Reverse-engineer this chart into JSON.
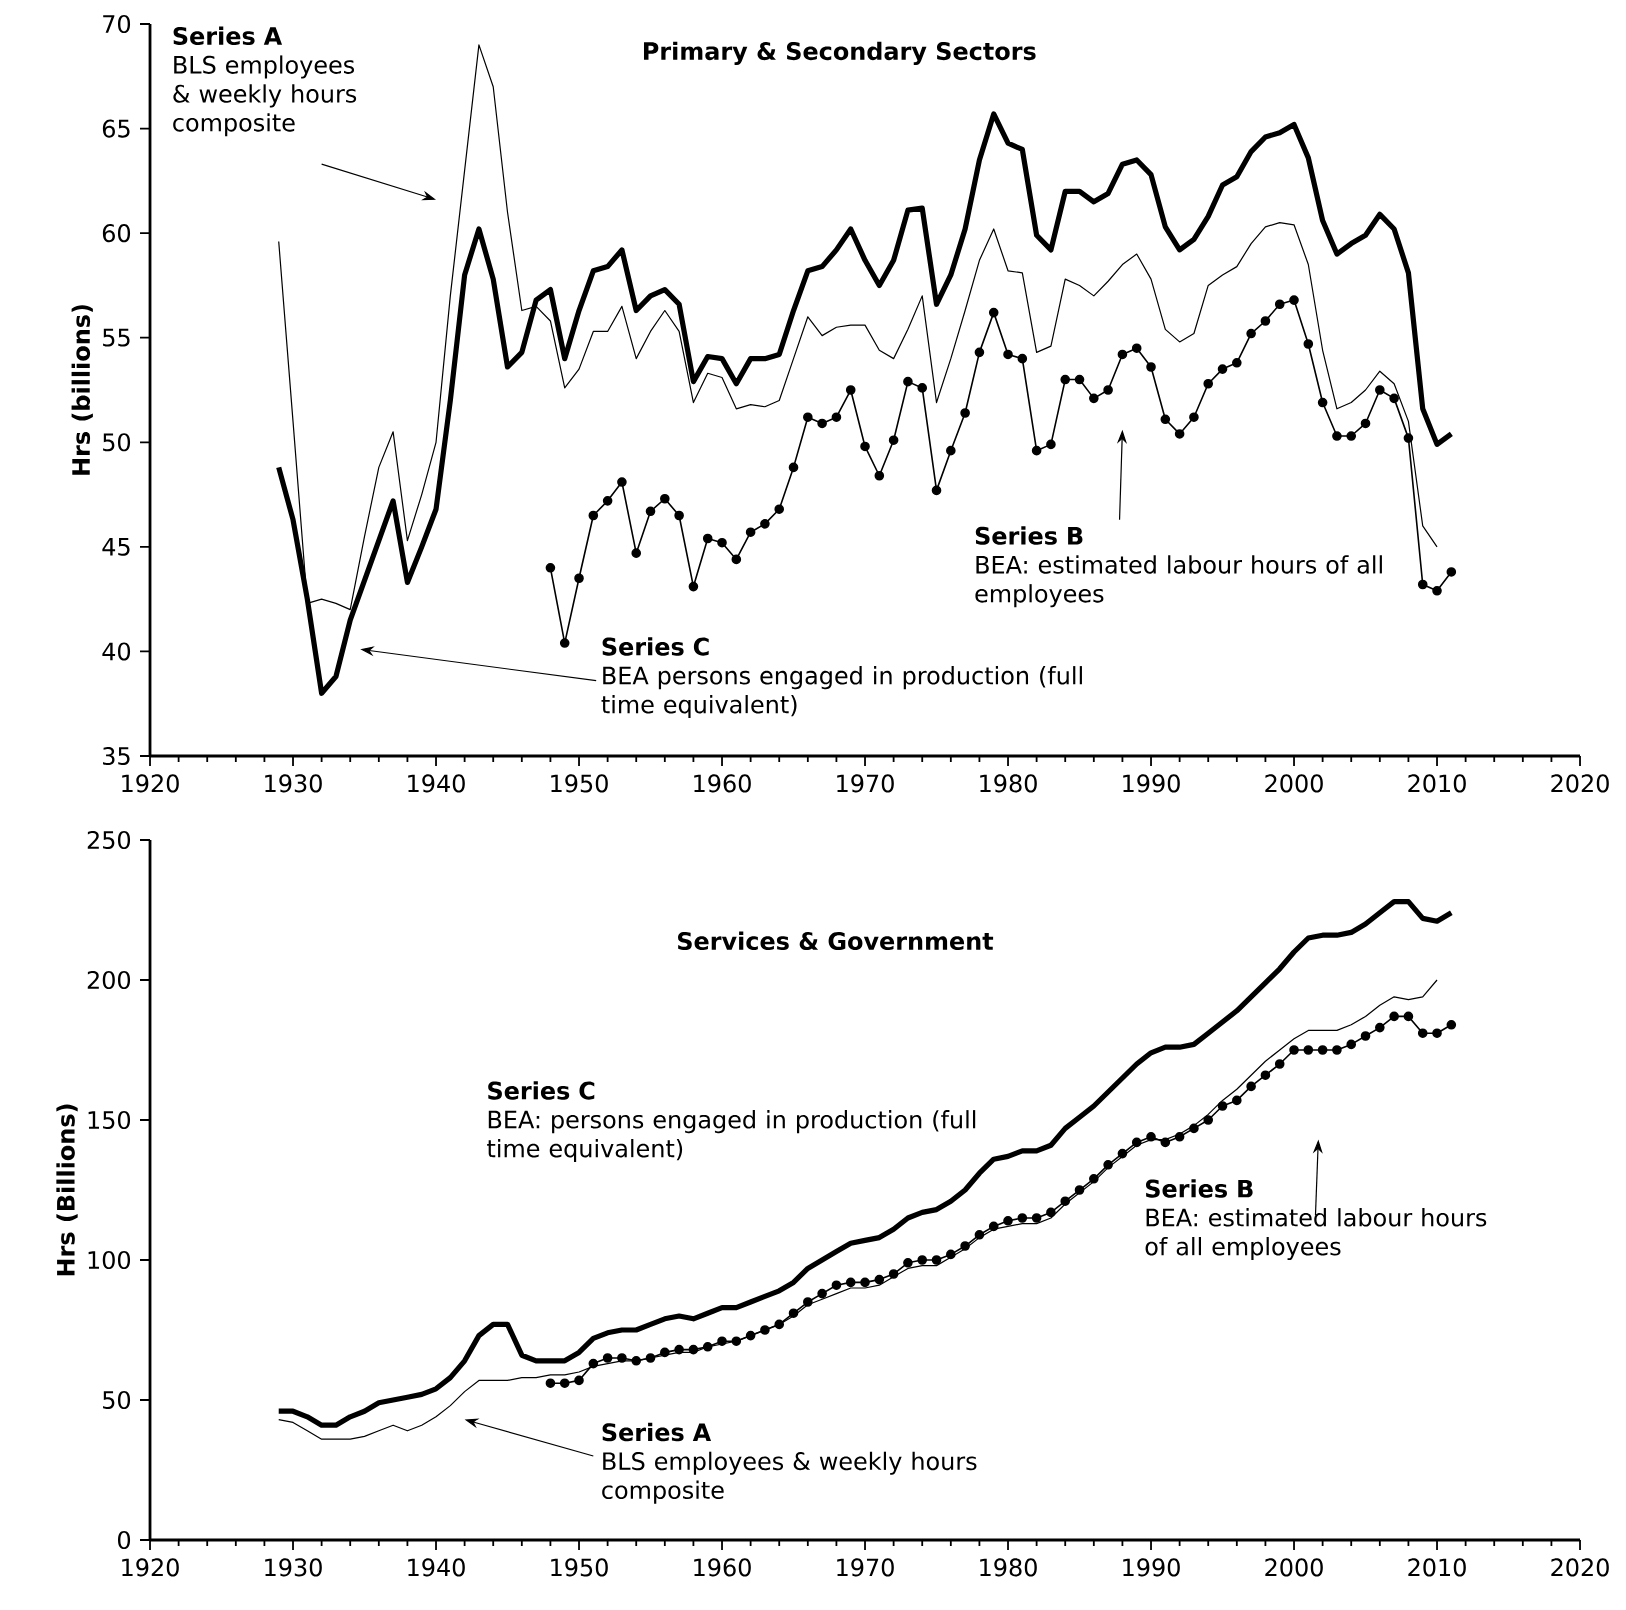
{
  "chart_data": [
    {
      "type": "line",
      "title": "Primary & Secondary Sectors",
      "ylabel": "Hrs (billions)",
      "xlim": [
        1920,
        2020
      ],
      "xticks": [
        1920,
        1930,
        1940,
        1950,
        1960,
        1970,
        1980,
        1990,
        2000,
        2010,
        2020
      ],
      "ylim": [
        35,
        70
      ],
      "yticks": [
        35,
        40,
        45,
        50,
        55,
        60,
        65,
        70
      ],
      "line_style": "solid",
      "series": [
        {
          "color": "#000000",
          "marker": "none",
          "x": [
            1929,
            1930,
            1931,
            1932,
            1933,
            1934,
            1935,
            1936,
            1937,
            1938,
            1939,
            1940,
            1941,
            1942,
            1943,
            1944,
            1945,
            1946,
            1947,
            1948,
            1949,
            1950,
            1951,
            1952,
            1953,
            1954,
            1955,
            1956,
            1957,
            1958,
            1959,
            1960,
            1961,
            1962,
            1963,
            1964,
            1965,
            1966,
            1967,
            1968,
            1969,
            1970,
            1971,
            1972,
            1973,
            1974,
            1975,
            1976,
            1977,
            1978,
            1979,
            1980,
            1981,
            1982,
            1983,
            1984,
            1985,
            1986,
            1987,
            1988,
            1989,
            1990,
            1991,
            1992,
            1993,
            1994,
            1995,
            1996,
            1997,
            1998,
            1999,
            2000,
            2001,
            2002,
            2003,
            2004,
            2005,
            2006,
            2007,
            2008,
            2009,
            2010
          ],
          "values": [
            59.6,
            51.0,
            42.3,
            42.5,
            42.3,
            42.0,
            45.5,
            48.8,
            50.5,
            45.3,
            47.5,
            50.0,
            57.0,
            63.0,
            69.0,
            67.0,
            61.0,
            56.3,
            56.5,
            55.8,
            52.6,
            53.5,
            55.3,
            55.3,
            56.5,
            54.0,
            55.3,
            56.3,
            55.3,
            51.9,
            53.3,
            53.1,
            51.6,
            51.8,
            51.7,
            52.0,
            54.0,
            56.0,
            55.1,
            55.5,
            55.6,
            55.6,
            54.4,
            54.0,
            55.4,
            57.0,
            51.9,
            54.0,
            56.3,
            58.7,
            60.2,
            58.2,
            58.1,
            54.3,
            54.6,
            57.8,
            57.5,
            57.0,
            57.7,
            58.5,
            59.0,
            57.8,
            55.4,
            54.8,
            55.2,
            57.5,
            58.0,
            58.4,
            59.5,
            60.3,
            60.5,
            60.4,
            58.5,
            54.4,
            51.6,
            51.9,
            52.5,
            53.4,
            52.8,
            51.0,
            46.0,
            45.0
          ]
        },
        {
          "color": "#000000",
          "marker": "circle",
          "x": [
            1948,
            1949,
            1950,
            1951,
            1952,
            1953,
            1954,
            1955,
            1956,
            1957,
            1958,
            1959,
            1960,
            1961,
            1962,
            1963,
            1964,
            1965,
            1966,
            1967,
            1968,
            1969,
            1970,
            1971,
            1972,
            1973,
            1974,
            1975,
            1976,
            1977,
            1978,
            1979,
            1980,
            1981,
            1982,
            1983,
            1984,
            1985,
            1986,
            1987,
            1988,
            1989,
            1990,
            1991,
            1992,
            1993,
            1994,
            1995,
            1996,
            1997,
            1998,
            1999,
            2000,
            2001,
            2002,
            2003,
            2004,
            2005,
            2006,
            2007,
            2008,
            2009,
            2010,
            2011
          ],
          "values": [
            44.0,
            40.4,
            43.5,
            46.5,
            47.2,
            48.1,
            44.7,
            46.7,
            47.3,
            46.5,
            43.1,
            45.4,
            45.2,
            44.4,
            45.7,
            46.1,
            46.8,
            48.8,
            51.2,
            50.9,
            51.2,
            52.5,
            49.8,
            48.4,
            50.1,
            52.9,
            52.6,
            47.7,
            49.6,
            51.4,
            54.3,
            56.2,
            54.2,
            54.0,
            49.6,
            49.9,
            53.0,
            53.0,
            52.1,
            52.5,
            54.2,
            54.5,
            53.6,
            51.1,
            50.4,
            51.2,
            52.8,
            53.5,
            53.8,
            55.2,
            55.8,
            56.6,
            56.8,
            54.7,
            51.9,
            50.3,
            50.3,
            50.9,
            52.5,
            52.1,
            50.2,
            43.2,
            42.9,
            43.8
          ]
        },
        {
          "color": "#000000",
          "marker": "none",
          "x": [
            1929,
            1930,
            1931,
            1932,
            1933,
            1934,
            1935,
            1936,
            1937,
            1938,
            1939,
            1940,
            1941,
            1942,
            1943,
            1944,
            1945,
            1946,
            1947,
            1948,
            1949,
            1950,
            1951,
            1952,
            1953,
            1954,
            1955,
            1956,
            1957,
            1958,
            1959,
            1960,
            1961,
            1962,
            1963,
            1964,
            1965,
            1966,
            1967,
            1968,
            1969,
            1970,
            1971,
            1972,
            1973,
            1974,
            1975,
            1976,
            1977,
            1978,
            1979,
            1980,
            1981,
            1982,
            1983,
            1984,
            1985,
            1986,
            1987,
            1988,
            1989,
            1990,
            1991,
            1992,
            1993,
            1994,
            1995,
            1996,
            1997,
            1998,
            1999,
            2000,
            2001,
            2002,
            2003,
            2004,
            2005,
            2006,
            2007,
            2008,
            2009,
            2010,
            2011
          ],
          "values": [
            48.8,
            46.3,
            42.5,
            38.0,
            38.8,
            41.5,
            43.4,
            45.3,
            47.2,
            43.3,
            45.0,
            46.8,
            52.0,
            58.0,
            60.2,
            57.8,
            53.6,
            54.3,
            56.8,
            57.3,
            54.0,
            56.3,
            58.2,
            58.4,
            59.2,
            56.3,
            57.0,
            57.3,
            56.6,
            52.9,
            54.1,
            54.0,
            52.8,
            54.0,
            54.0,
            54.2,
            56.3,
            58.2,
            58.4,
            59.2,
            60.2,
            58.7,
            57.5,
            58.7,
            61.1,
            61.2,
            56.6,
            58.0,
            60.2,
            63.5,
            65.7,
            64.3,
            64.0,
            59.9,
            59.2,
            62.0,
            62.0,
            61.5,
            61.9,
            63.3,
            63.5,
            62.8,
            60.3,
            59.2,
            59.7,
            60.8,
            62.3,
            62.7,
            63.9,
            64.6,
            64.8,
            65.2,
            63.6,
            60.6,
            59.0,
            59.5,
            59.9,
            60.9,
            60.2,
            58.1,
            51.6,
            49.9,
            50.4
          ]
        }
      ],
      "annotations": [
        "Series A",
        "BLS employees & weekly hours composite",
        "Series B",
        "BEA: estimated labour hours of all employees",
        "Series C",
        "BEA persons engaged in production (full time equivalent)"
      ]
    },
    {
      "type": "line",
      "title": "Services & Government",
      "ylabel": "Hrs (Billions)",
      "xlim": [
        1920,
        2020
      ],
      "xticks": [
        1920,
        1930,
        1940,
        1950,
        1960,
        1970,
        1980,
        1990,
        2000,
        2010,
        2020
      ],
      "ylim": [
        0,
        250
      ],
      "yticks": [
        0,
        50,
        100,
        150,
        200,
        250
      ],
      "line_style": "solid",
      "series": [
        {
          "color": "#000000",
          "marker": "none",
          "x": [
            1929,
            1930,
            1931,
            1932,
            1933,
            1934,
            1935,
            1936,
            1937,
            1938,
            1939,
            1940,
            1941,
            1942,
            1943,
            1944,
            1945,
            1946,
            1947,
            1948,
            1949,
            1950,
            1951,
            1952,
            1953,
            1954,
            1955,
            1956,
            1957,
            1958,
            1959,
            1960,
            1961,
            1962,
            1963,
            1964,
            1965,
            1966,
            1967,
            1968,
            1969,
            1970,
            1971,
            1972,
            1973,
            1974,
            1975,
            1976,
            1977,
            1978,
            1979,
            1980,
            1981,
            1982,
            1983,
            1984,
            1985,
            1986,
            1987,
            1988,
            1989,
            1990,
            1991,
            1992,
            1993,
            1994,
            1995,
            1996,
            1997,
            1998,
            1999,
            2000,
            2001,
            2002,
            2003,
            2004,
            2005,
            2006,
            2007,
            2008,
            2009,
            2010
          ],
          "values": [
            43,
            42,
            39,
            36,
            36,
            36,
            37,
            39,
            41,
            39,
            41,
            44,
            48,
            53,
            57,
            57,
            57,
            58,
            58,
            59,
            59,
            60,
            62,
            63,
            64,
            64,
            65,
            66,
            67,
            67,
            69,
            70,
            71,
            73,
            75,
            77,
            80,
            84,
            86,
            88,
            90,
            90,
            91,
            94,
            97,
            98,
            98,
            101,
            104,
            108,
            111,
            112,
            113,
            113,
            115,
            120,
            124,
            128,
            133,
            137,
            141,
            143,
            143,
            145,
            148,
            152,
            157,
            161,
            166,
            171,
            175,
            179,
            182,
            182,
            182,
            184,
            187,
            191,
            194,
            193,
            194,
            200
          ]
        },
        {
          "color": "#000000",
          "marker": "circle",
          "x": [
            1948,
            1949,
            1950,
            1951,
            1952,
            1953,
            1954,
            1955,
            1956,
            1957,
            1958,
            1959,
            1960,
            1961,
            1962,
            1963,
            1964,
            1965,
            1966,
            1967,
            1968,
            1969,
            1970,
            1971,
            1972,
            1973,
            1974,
            1975,
            1976,
            1977,
            1978,
            1979,
            1980,
            1981,
            1982,
            1983,
            1984,
            1985,
            1986,
            1987,
            1988,
            1989,
            1990,
            1991,
            1992,
            1993,
            1994,
            1995,
            1996,
            1997,
            1998,
            1999,
            2000,
            2001,
            2002,
            2003,
            2004,
            2005,
            2006,
            2007,
            2008,
            2009,
            2010,
            2011
          ],
          "values": [
            56,
            56,
            57,
            63,
            65,
            65,
            64,
            65,
            67,
            68,
            68,
            69,
            71,
            71,
            73,
            75,
            77,
            81,
            85,
            88,
            91,
            92,
            92,
            93,
            95,
            99,
            100,
            100,
            102,
            105,
            109,
            112,
            114,
            115,
            115,
            117,
            121,
            125,
            129,
            134,
            138,
            142,
            144,
            142,
            144,
            147,
            150,
            155,
            157,
            162,
            166,
            170,
            175,
            175,
            175,
            175,
            177,
            180,
            183,
            187,
            187,
            181,
            181,
            184
          ]
        },
        {
          "color": "#000000",
          "marker": "none",
          "x": [
            1929,
            1930,
            1931,
            1932,
            1933,
            1934,
            1935,
            1936,
            1937,
            1938,
            1939,
            1940,
            1941,
            1942,
            1943,
            1944,
            1945,
            1946,
            1947,
            1948,
            1949,
            1950,
            1951,
            1952,
            1953,
            1954,
            1955,
            1956,
            1957,
            1958,
            1959,
            1960,
            1961,
            1962,
            1963,
            1964,
            1965,
            1966,
            1967,
            1968,
            1969,
            1970,
            1971,
            1972,
            1973,
            1974,
            1975,
            1976,
            1977,
            1978,
            1979,
            1980,
            1981,
            1982,
            1983,
            1984,
            1985,
            1986,
            1987,
            1988,
            1989,
            1990,
            1991,
            1992,
            1993,
            1994,
            1995,
            1996,
            1997,
            1998,
            1999,
            2000,
            2001,
            2002,
            2003,
            2004,
            2005,
            2006,
            2007,
            2008,
            2009,
            2010,
            2011
          ],
          "values": [
            46,
            46,
            44,
            41,
            41,
            44,
            46,
            49,
            50,
            51,
            52,
            54,
            58,
            64,
            73,
            77,
            77,
            66,
            64,
            64,
            64,
            67,
            72,
            74,
            75,
            75,
            77,
            79,
            80,
            79,
            81,
            83,
            83,
            85,
            87,
            89,
            92,
            97,
            100,
            103,
            106,
            107,
            108,
            111,
            115,
            117,
            118,
            121,
            125,
            131,
            136,
            137,
            139,
            139,
            141,
            147,
            151,
            155,
            160,
            165,
            170,
            174,
            176,
            176,
            177,
            181,
            185,
            189,
            194,
            199,
            204,
            210,
            215,
            216,
            216,
            217,
            220,
            224,
            228,
            228,
            222,
            221,
            224
          ]
        }
      ],
      "annotations": [
        "Series A",
        "BLS employees & weekly hours composite",
        "Series B",
        "BEA: estimated labour hours of all employees",
        "Series C",
        "BEA: persons engaged in production (full time equivalent)"
      ]
    }
  ]
}
